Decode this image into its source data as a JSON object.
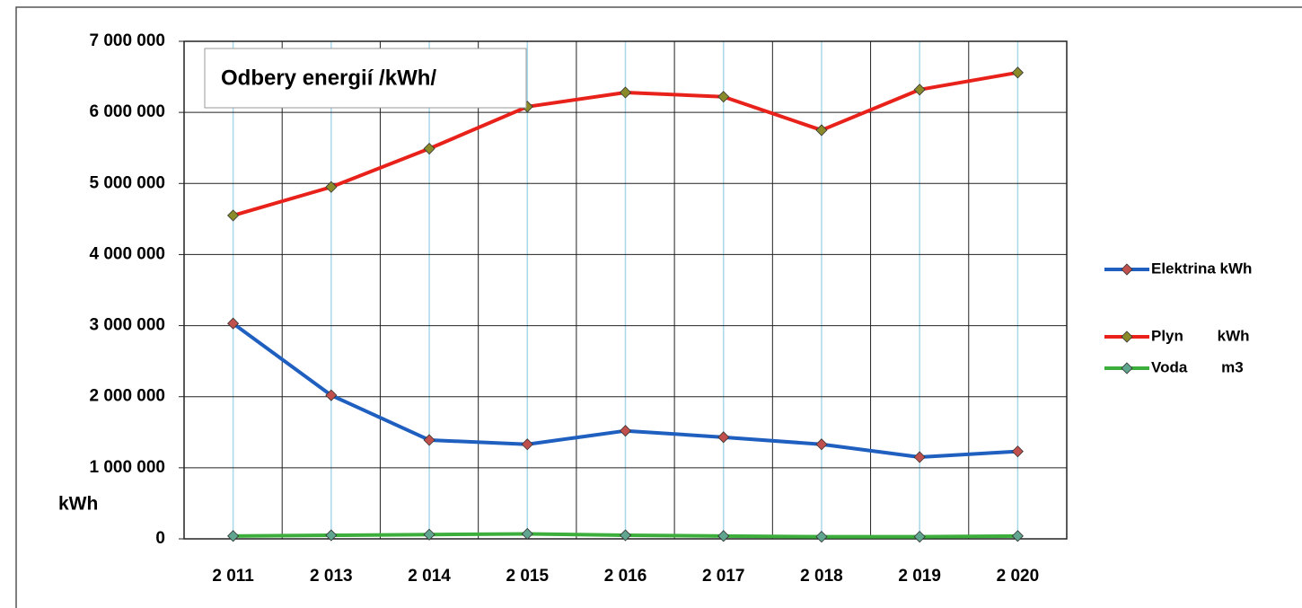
{
  "chart_data": {
    "type": "line",
    "title": "Odbery energií /kWh/",
    "y_label": "kWh",
    "categories": [
      "2 011",
      "2 013",
      "2 014",
      "2 015",
      "2 016",
      "2 017",
      "2 018",
      "2 019",
      "2 020"
    ],
    "series": [
      {
        "name": "Elektrina kWh",
        "color": "#1f5fbf",
        "marker_color": "#c0504d",
        "values": [
          3030000,
          2020000,
          1390000,
          1330000,
          1520000,
          1430000,
          1330000,
          1150000,
          1230000
        ]
      },
      {
        "name": "Plyn        kWh",
        "color": "#e8221b",
        "marker_color": "#8a8a2a",
        "values": [
          4550000,
          4950000,
          5490000,
          6080000,
          6280000,
          6220000,
          5750000,
          6320000,
          6560000
        ]
      },
      {
        "name": "Voda        m3",
        "color": "#3cae3c",
        "marker_color": "#5fa58f",
        "values": [
          40000,
          50000,
          60000,
          70000,
          50000,
          40000,
          30000,
          30000,
          40000
        ]
      }
    ],
    "ylim": [
      0,
      7000000
    ],
    "yticks": [
      0,
      {
        "value": 1000000,
        "label": "1 000 000"
      },
      {
        "value": 2000000,
        "label": "2 000 000"
      },
      {
        "value": 3000000,
        "label": "3 000 000"
      },
      {
        "value": 4000000,
        "label": "4 000 000"
      },
      {
        "value": 5000000,
        "label": "5 000 000"
      },
      {
        "value": 6000000,
        "label": "6 000 000"
      },
      {
        "value": 7000000,
        "label": "7 000 000"
      }
    ],
    "grid": true,
    "legend": "right"
  }
}
